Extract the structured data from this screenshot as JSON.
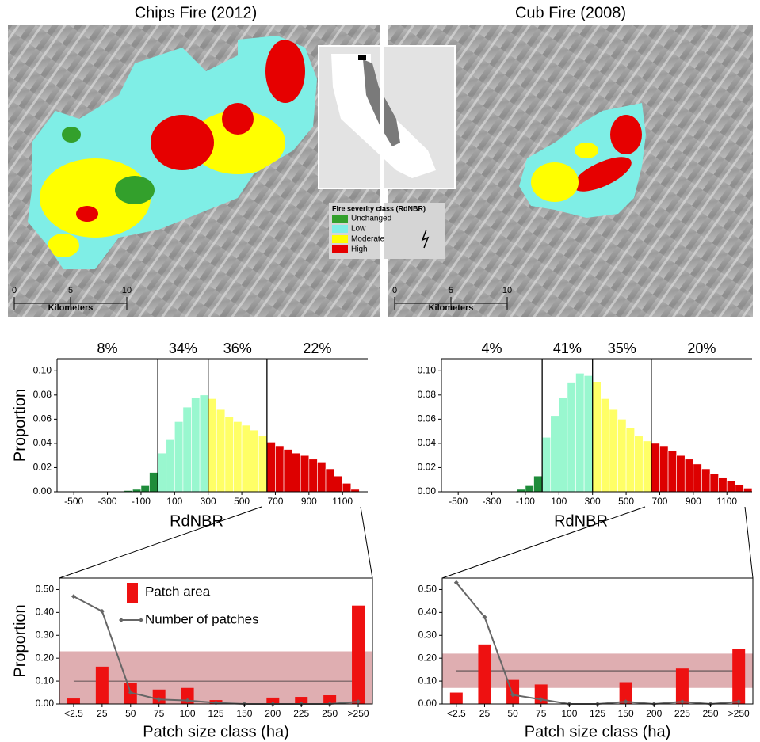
{
  "maps": [
    {
      "title": "Chips Fire (2012)",
      "scale": {
        "ticks": [
          "0",
          "5",
          "10"
        ],
        "label": "Kilometers"
      }
    },
    {
      "title": "Cub Fire (2008)",
      "scale": {
        "ticks": [
          "0",
          "5",
          "10"
        ],
        "label": "Kilometers"
      }
    }
  ],
  "legend": {
    "title": "Fire severity class (RdNBR)",
    "items": [
      {
        "name": "Unchanged",
        "color": "#33a02c"
      },
      {
        "name": "Low",
        "color": "#7feee6"
      },
      {
        "name": "Moderate",
        "color": "#ffff00"
      },
      {
        "name": "High",
        "color": "#e60000"
      }
    ]
  },
  "chart_data": [
    {
      "type": "histogram",
      "xlabel": "RdNBR",
      "ylabel": "Proportion",
      "bins": [
        -200,
        -150,
        -100,
        -50,
        0,
        50,
        100,
        150,
        200,
        250,
        300,
        350,
        400,
        450,
        500,
        550,
        600,
        650,
        700,
        750,
        800,
        850,
        900,
        950,
        1000,
        1050,
        1100,
        1150,
        1200
      ],
      "counts": [
        0.001,
        0.002,
        0.005,
        0.016,
        0.032,
        0.043,
        0.058,
        0.07,
        0.078,
        0.08,
        0.077,
        0.068,
        0.062,
        0.058,
        0.055,
        0.051,
        0.046,
        0.041,
        0.038,
        0.035,
        0.032,
        0.03,
        0.027,
        0.024,
        0.019,
        0.013,
        0.007,
        0.002
      ],
      "thresholds": [
        0,
        300,
        650
      ],
      "class_colors": [
        "#1e8c3a",
        "#99f7cf",
        "#ffff66",
        "#dd0000"
      ],
      "class_shares": {
        "values": [
          8,
          34,
          36,
          22
        ],
        "value_labels": [
          "8%",
          "34%",
          "36%",
          "22%"
        ]
      },
      "xlim": [
        -600,
        1250
      ],
      "xticks": [
        -500,
        -300,
        -100,
        100,
        300,
        500,
        700,
        900,
        1100
      ],
      "ylim": [
        0,
        0.11
      ],
      "yticks": [
        {
          "value": 0,
          "label": "0.00"
        },
        {
          "value": 0.02,
          "label": "0.02"
        },
        {
          "value": 0.04,
          "label": "0.04"
        },
        {
          "value": 0.06,
          "label": "0.06"
        },
        {
          "value": 0.08,
          "label": "0.08"
        },
        {
          "value": 0.1,
          "label": "0.10"
        }
      ]
    },
    {
      "type": "histogram",
      "xlabel": "RdNBR",
      "bins": [
        -150,
        -100,
        -50,
        0,
        50,
        100,
        150,
        200,
        250,
        300,
        350,
        400,
        450,
        500,
        550,
        600,
        650,
        700,
        750,
        800,
        850,
        900,
        950,
        1000,
        1050,
        1100,
        1150,
        1200,
        1250
      ],
      "counts": [
        0.002,
        0.005,
        0.013,
        0.045,
        0.063,
        0.078,
        0.09,
        0.098,
        0.096,
        0.091,
        0.077,
        0.068,
        0.06,
        0.053,
        0.046,
        0.042,
        0.04,
        0.038,
        0.034,
        0.03,
        0.027,
        0.023,
        0.019,
        0.015,
        0.012,
        0.009,
        0.006,
        0.003
      ],
      "thresholds": [
        0,
        300,
        650
      ],
      "class_colors": [
        "#1e8c3a",
        "#99f7cf",
        "#ffff66",
        "#dd0000"
      ],
      "class_shares": {
        "values": [
          4,
          41,
          35,
          20
        ],
        "value_labels": [
          "4%",
          "41%",
          "35%",
          "20%"
        ]
      },
      "xlim": [
        -600,
        1250
      ],
      "xticks": [
        -500,
        -300,
        -100,
        100,
        300,
        500,
        700,
        900,
        1100
      ],
      "ylim": [
        0,
        0.11
      ],
      "yticks": [
        {
          "value": 0,
          "label": "0.00"
        },
        {
          "value": 0.02,
          "label": "0.02"
        },
        {
          "value": 0.04,
          "label": "0.04"
        },
        {
          "value": 0.06,
          "label": "0.06"
        },
        {
          "value": 0.08,
          "label": "0.08"
        },
        {
          "value": 0.1,
          "label": "0.10"
        }
      ]
    },
    {
      "type": "patch",
      "xlabel": "Patch size class (ha)",
      "ylabel": "Proportion",
      "legend": true,
      "categories": [
        "<2.5",
        "25",
        "50",
        "75",
        "100",
        "125",
        "150",
        "200",
        "225",
        "250",
        ">250"
      ],
      "series": [
        {
          "name": "Patch area",
          "kind": "bar",
          "color": "#ee1111",
          "values": [
            0.024,
            0.163,
            0.09,
            0.063,
            0.07,
            0.017,
            0,
            0.028,
            0.031,
            0.038,
            0.43
          ]
        },
        {
          "name": "Number of patches",
          "kind": "line",
          "color": "#666666",
          "values": [
            0.47,
            0.405,
            0.05,
            0.02,
            0.015,
            0.005,
            0,
            0,
            0,
            0,
            0.01
          ]
        }
      ],
      "reference_band": [
        0,
        0.23
      ],
      "reference_line": 0.1,
      "band_color": "#d9a0a3",
      "ylim": [
        0,
        0.55
      ],
      "yticks": [
        {
          "value": 0,
          "label": "0.00"
        },
        {
          "value": 0.1,
          "label": "0.10"
        },
        {
          "value": 0.2,
          "label": "0.20"
        },
        {
          "value": 0.3,
          "label": "0.30"
        },
        {
          "value": 0.4,
          "label": "0.40"
        },
        {
          "value": 0.5,
          "label": "0.50"
        }
      ]
    },
    {
      "type": "patch",
      "xlabel": "Patch size class (ha)",
      "legend": false,
      "categories": [
        "<2.5",
        "25",
        "50",
        "75",
        "100",
        "125",
        "150",
        "200",
        "225",
        "250",
        ">250"
      ],
      "series": [
        {
          "name": "Patch area",
          "kind": "bar",
          "color": "#ee1111",
          "values": [
            0.05,
            0.26,
            0.105,
            0.085,
            0,
            0,
            0.095,
            0,
            0.155,
            0,
            0.24
          ]
        },
        {
          "name": "Number of patches",
          "kind": "line",
          "color": "#666666",
          "values": [
            0.53,
            0.38,
            0.04,
            0.02,
            0,
            0,
            0.01,
            0,
            0.01,
            0,
            0.01
          ]
        }
      ],
      "reference_band": [
        0.07,
        0.22
      ],
      "reference_line": 0.145,
      "band_color": "#d9a0a3",
      "ylim": [
        0,
        0.55
      ],
      "yticks": [
        {
          "value": 0,
          "label": "0.00"
        },
        {
          "value": 0.1,
          "label": "0.10"
        },
        {
          "value": 0.2,
          "label": "0.20"
        },
        {
          "value": 0.3,
          "label": "0.30"
        },
        {
          "value": 0.4,
          "label": "0.40"
        },
        {
          "value": 0.5,
          "label": "0.50"
        }
      ]
    }
  ]
}
